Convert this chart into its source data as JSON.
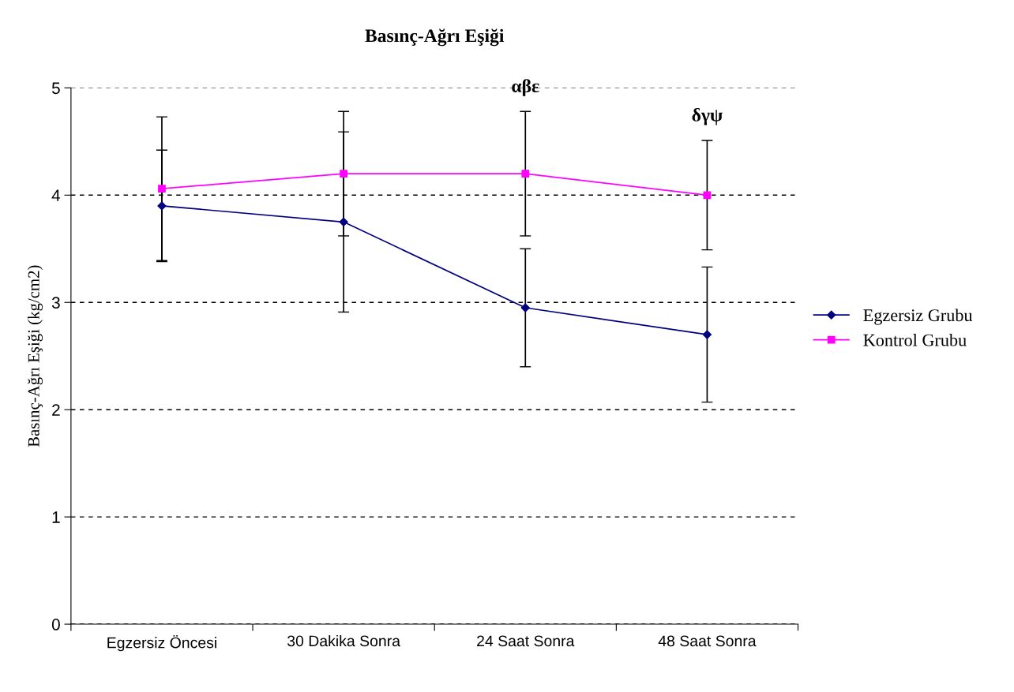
{
  "chart_data": {
    "type": "line",
    "title": "Basınç-Ağrı Eşiği",
    "ylabel": "Basınç-Ağrı Eşiği (kg/cm2)",
    "categories": [
      "Egzersiz Öncesi",
      "30 Dakika Sonra",
      "24 Saat Sonra",
      "48 Saat Sonra"
    ],
    "series": [
      {
        "name": "Egzersiz Grubu",
        "color": "#000080",
        "marker": "diamond",
        "values": [
          3.9,
          3.75,
          2.95,
          2.7
        ],
        "errors": [
          0.52,
          0.84,
          0.55,
          0.63
        ]
      },
      {
        "name": "Kontrol Grubu",
        "color": "#ff00ff",
        "marker": "square",
        "values": [
          4.06,
          4.2,
          4.2,
          4.0
        ],
        "errors": [
          0.67,
          0.58,
          0.58,
          0.51
        ]
      }
    ],
    "ylim": [
      0,
      5
    ],
    "yticks": [
      0,
      1,
      2,
      3,
      4,
      5
    ],
    "grid": "y",
    "legend": "right",
    "line_style": "solid",
    "annotations": [
      "αβε",
      "δγψ"
    ]
  }
}
